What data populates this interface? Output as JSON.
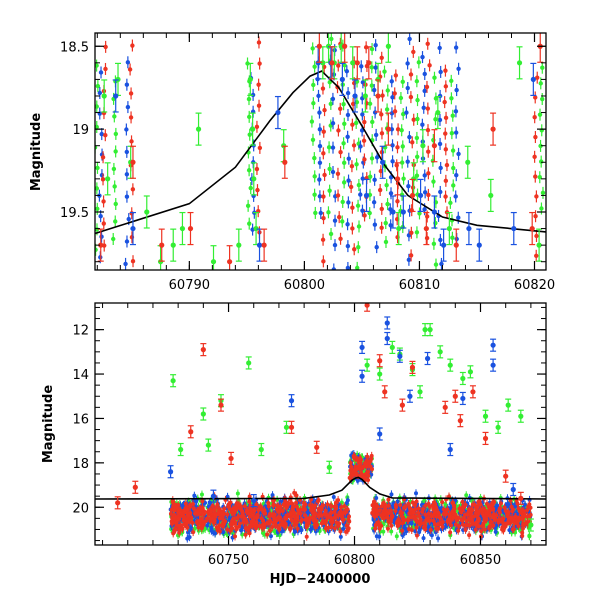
{
  "chart_data": [
    {
      "type": "scatter",
      "title": "",
      "xlabel": "",
      "ylabel": "Magnitude",
      "xlim": [
        60781.8,
        60821
      ],
      "ylim": [
        19.85,
        18.42
      ],
      "y_inverted": true,
      "x_ticks": [
        60790,
        60800,
        60810,
        60820
      ],
      "y_ticks": [
        18.5,
        19,
        19.5
      ],
      "y_tick_labels": [
        "18.5",
        "19",
        "19.5"
      ],
      "grid": false,
      "colors": {
        "green": "#33ee33",
        "blue": "#1a52e0",
        "red": "#ee3322",
        "model": "#000000"
      },
      "model_curve": {
        "x": [
          60781.8,
          60790,
          60794,
          60797,
          60799,
          60800.5,
          60801.5,
          60803,
          60805,
          60807,
          60809,
          60812,
          60815,
          60821
        ],
        "y": [
          19.63,
          19.45,
          19.23,
          18.95,
          18.78,
          18.68,
          18.65,
          18.75,
          18.98,
          19.22,
          19.4,
          19.53,
          19.58,
          19.62
        ]
      },
      "series": [
        {
          "color": "green",
          "points": [
            [
              60782.6,
              18.8
            ],
            [
              60782.9,
              19.3
            ],
            [
              60783.8,
              18.7
            ],
            [
              60784.9,
              19.2
            ],
            [
              60786.3,
              19.5
            ],
            [
              60787.5,
              19.8
            ],
            [
              60788.6,
              19.7
            ],
            [
              60789.4,
              19.6
            ],
            [
              60790.8,
              19.0
            ],
            [
              60792.1,
              19.8
            ],
            [
              60794.3,
              19.7
            ],
            [
              60795.3,
              18.7
            ],
            [
              60795.5,
              19.0
            ],
            [
              60795.6,
              19.3
            ],
            [
              60795.8,
              19.6
            ],
            [
              60798.2,
              19.1
            ],
            [
              60801.6,
              18.6
            ],
            [
              60802.1,
              18.5
            ],
            [
              60802.6,
              18.6
            ],
            [
              60803.2,
              18.5
            ],
            [
              60804.2,
              18.6
            ],
            [
              60805.3,
              18.8
            ],
            [
              60806.4,
              18.7
            ],
            [
              60807.3,
              18.5
            ],
            [
              60808.2,
              19.6
            ],
            [
              60809.5,
              19.3
            ],
            [
              60810.3,
              19.1
            ],
            [
              60811.6,
              18.9
            ],
            [
              60812.6,
              19.6
            ],
            [
              60814.2,
              19.2
            ],
            [
              60816.2,
              19.4
            ],
            [
              60818.7,
              18.6
            ],
            [
              60820.4,
              19.7
            ]
          ]
        },
        {
          "color": "blue",
          "points": [
            [
              60783.6,
              18.8
            ],
            [
              60785.1,
              19.6
            ],
            [
              60796.1,
              19.7
            ],
            [
              60797.7,
              18.9
            ],
            [
              60801.2,
              18.6
            ],
            [
              60802.3,
              18.6
            ],
            [
              60803.3,
              18.7
            ],
            [
              60804.4,
              18.8
            ],
            [
              60805.4,
              19.4
            ],
            [
              60806.8,
              19.2
            ],
            [
              60807.7,
              19.5
            ],
            [
              60808.6,
              19.5
            ],
            [
              60810.1,
              19.4
            ],
            [
              60811.3,
              19.5
            ],
            [
              60812.1,
              19.7
            ],
            [
              60814.3,
              19.6
            ],
            [
              60815.2,
              19.7
            ],
            [
              60818.2,
              19.6
            ],
            [
              60819.9,
              18.7
            ]
          ]
        },
        {
          "color": "red",
          "points": [
            [
              60782.3,
              19.7
            ],
            [
              60785.1,
              19.2
            ],
            [
              60787.6,
              19.7
            ],
            [
              60790.1,
              19.6
            ],
            [
              60793.5,
              19.8
            ],
            [
              60796.5,
              19.7
            ],
            [
              60798.3,
              19.2
            ],
            [
              60801.3,
              18.5
            ],
            [
              60802.4,
              18.6
            ],
            [
              60803.5,
              18.5
            ],
            [
              60804.6,
              18.6
            ],
            [
              60805.6,
              18.6
            ],
            [
              60806.4,
              18.8
            ],
            [
              60807.3,
              19.0
            ],
            [
              60808.1,
              19.3
            ],
            [
              60809.4,
              19.4
            ],
            [
              60810.6,
              19.6
            ],
            [
              60811.3,
              19.1
            ],
            [
              60813.2,
              19.7
            ],
            [
              60816.4,
              19.0
            ],
            [
              60819.8,
              19.6
            ],
            [
              60820.5,
              18.5
            ]
          ]
        }
      ]
    },
    {
      "type": "scatter",
      "title": "",
      "xlabel": "HJD−2400000",
      "ylabel": "Magnitude",
      "xlim": [
        60697,
        60876
      ],
      "ylim": [
        21.7,
        10.8
      ],
      "y_inverted": true,
      "x_ticks": [
        60750,
        60800,
        60850
      ],
      "y_ticks": [
        12,
        14,
        16,
        18,
        20
      ],
      "grid": false,
      "colors": {
        "green": "#33ee33",
        "blue": "#1a52e0",
        "red": "#ee3322",
        "model": "#000000"
      },
      "model_curve": {
        "x": [
          60697,
          60780,
          60790,
          60795,
          60799,
          60800.5,
          60801.5,
          60803,
          60806,
          60810,
          60815,
          60876
        ],
        "y": [
          19.63,
          19.6,
          19.45,
          19.23,
          18.78,
          18.68,
          18.65,
          18.75,
          19.1,
          19.4,
          19.58,
          19.63
        ]
      },
      "dense_band": {
        "x_range": [
          60727,
          60870
        ],
        "y_range": [
          19.3,
          21.2
        ],
        "quiescent_mean": 20.4,
        "outburst_x": [
          60798,
          60807
        ],
        "outburst_y": [
          17.6,
          18.8
        ]
      },
      "series": [
        {
          "color": "green",
          "points": [
            [
              60728,
              14.3
            ],
            [
              60731,
              17.4
            ],
            [
              60740,
              15.8
            ],
            [
              60742,
              17.2
            ],
            [
              60747,
              15.2
            ],
            [
              60758,
              13.5
            ],
            [
              60763,
              17.4
            ],
            [
              60773,
              16.4
            ],
            [
              60790,
              18.2
            ],
            [
              60805,
              13.6
            ],
            [
              60810,
              14.0
            ],
            [
              60815,
              12.8
            ],
            [
              60818,
              13.1
            ],
            [
              60823,
              13.8
            ],
            [
              60826,
              14.8
            ],
            [
              60828,
              12.0
            ],
            [
              60830,
              12.0
            ],
            [
              60834,
              13.0
            ],
            [
              60838,
              13.6
            ],
            [
              60843,
              14.2
            ],
            [
              60846,
              13.9
            ],
            [
              60852,
              15.9
            ],
            [
              60857,
              16.4
            ],
            [
              60861,
              15.4
            ],
            [
              60866,
              15.9
            ],
            [
              60870,
              20.8
            ]
          ]
        },
        {
          "color": "blue",
          "points": [
            [
              60727,
              18.4
            ],
            [
              60744,
              19.5
            ],
            [
              60760,
              19.7
            ],
            [
              60775,
              15.2
            ],
            [
              60803,
              12.8
            ],
            [
              60803,
              14.1
            ],
            [
              60810,
              16.7
            ],
            [
              60813,
              12.4
            ],
            [
              60813,
              11.7
            ],
            [
              60818,
              13.2
            ],
            [
              60822,
              15.0
            ],
            [
              60829,
              13.3
            ],
            [
              60838,
              17.4
            ],
            [
              60843,
              15.1
            ],
            [
              60855,
              12.7
            ],
            [
              60855,
              13.6
            ],
            [
              60863,
              19.2
            ]
          ]
        },
        {
          "color": "red",
          "points": [
            [
              60706,
              19.8
            ],
            [
              60713,
              19.1
            ],
            [
              60735,
              16.6
            ],
            [
              60740,
              12.9
            ],
            [
              60747,
              15.4
            ],
            [
              60751,
              17.8
            ],
            [
              60775,
              16.4
            ],
            [
              60785,
              17.3
            ],
            [
              60805,
              10.9
            ],
            [
              60810,
              13.4
            ],
            [
              60812,
              14.8
            ],
            [
              60819,
              15.4
            ],
            [
              60823,
              13.7
            ],
            [
              60836,
              15.5
            ],
            [
              60840,
              15.0
            ],
            [
              60842,
              16.1
            ],
            [
              60847,
              14.8
            ],
            [
              60852,
              16.9
            ],
            [
              60860,
              18.6
            ],
            [
              60866,
              19.6
            ]
          ]
        }
      ]
    }
  ]
}
